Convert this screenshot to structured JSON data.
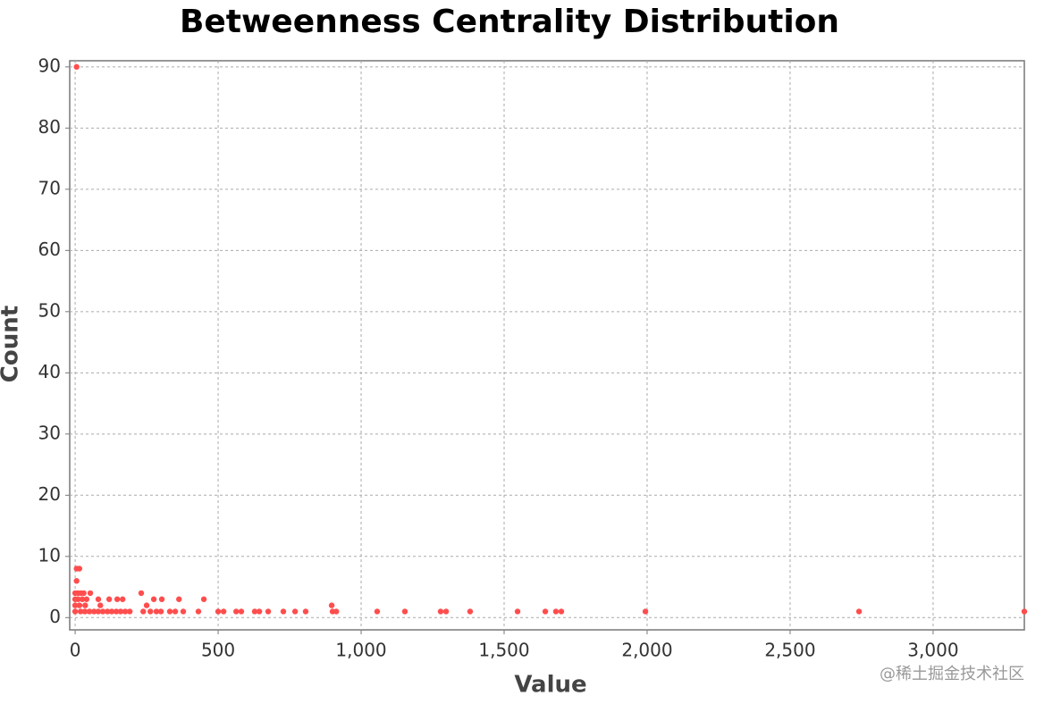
{
  "chart_data": {
    "type": "scatter",
    "title": "Betweenness Centrality Distribution",
    "x_label": "Value",
    "y_label": "Count",
    "watermark": "@稀土掘金技术社区",
    "color": "#ff4d4d",
    "grid": true,
    "xlim": [
      -19,
      3319
    ],
    "ylim": [
      -2,
      91
    ],
    "xticks": [
      0,
      500,
      {
        "value": 1000,
        "label": "1,000"
      },
      {
        "value": 1500,
        "label": "1,500"
      },
      {
        "value": 2000,
        "label": "2,000"
      },
      {
        "value": 2500,
        "label": "2,500"
      },
      {
        "value": 3000,
        "label": "3,000"
      }
    ],
    "yticks": [
      0,
      10,
      20,
      30,
      40,
      50,
      60,
      70,
      80,
      90
    ],
    "x": [
      5,
      5,
      15,
      5,
      0,
      0,
      0,
      0,
      10,
      20,
      30,
      10,
      25,
      40,
      15,
      35,
      53,
      231,
      81,
      119,
      147,
      166,
      275,
      303,
      363,
      450,
      88,
      250,
      897,
      19,
      34,
      50,
      66,
      81,
      97,
      113,
      128,
      144,
      159,
      175,
      191,
      238,
      263,
      284,
      300,
      331,
      350,
      378,
      431,
      500,
      519,
      563,
      581,
      628,
      644,
      675,
      728,
      769,
      806,
      900,
      913,
      1056,
      1153,
      1278,
      1297,
      1381,
      1547,
      1644,
      1681,
      1700,
      1994,
      2741,
      3319
    ],
    "values": [
      90,
      8,
      8,
      6,
      1,
      2,
      3,
      4,
      4,
      4,
      4,
      3,
      3,
      3,
      2,
      2,
      4,
      4,
      3,
      3,
      3,
      3,
      3,
      3,
      3,
      3,
      2,
      2,
      2,
      1,
      1,
      1,
      1,
      1,
      1,
      1,
      1,
      1,
      1,
      1,
      1,
      1,
      1,
      1,
      1,
      1,
      1,
      1,
      1,
      1,
      1,
      1,
      1,
      1,
      1,
      1,
      1,
      1,
      1,
      1,
      1,
      1,
      1,
      1,
      1,
      1,
      1,
      1,
      1,
      1,
      1,
      1,
      1
    ]
  }
}
